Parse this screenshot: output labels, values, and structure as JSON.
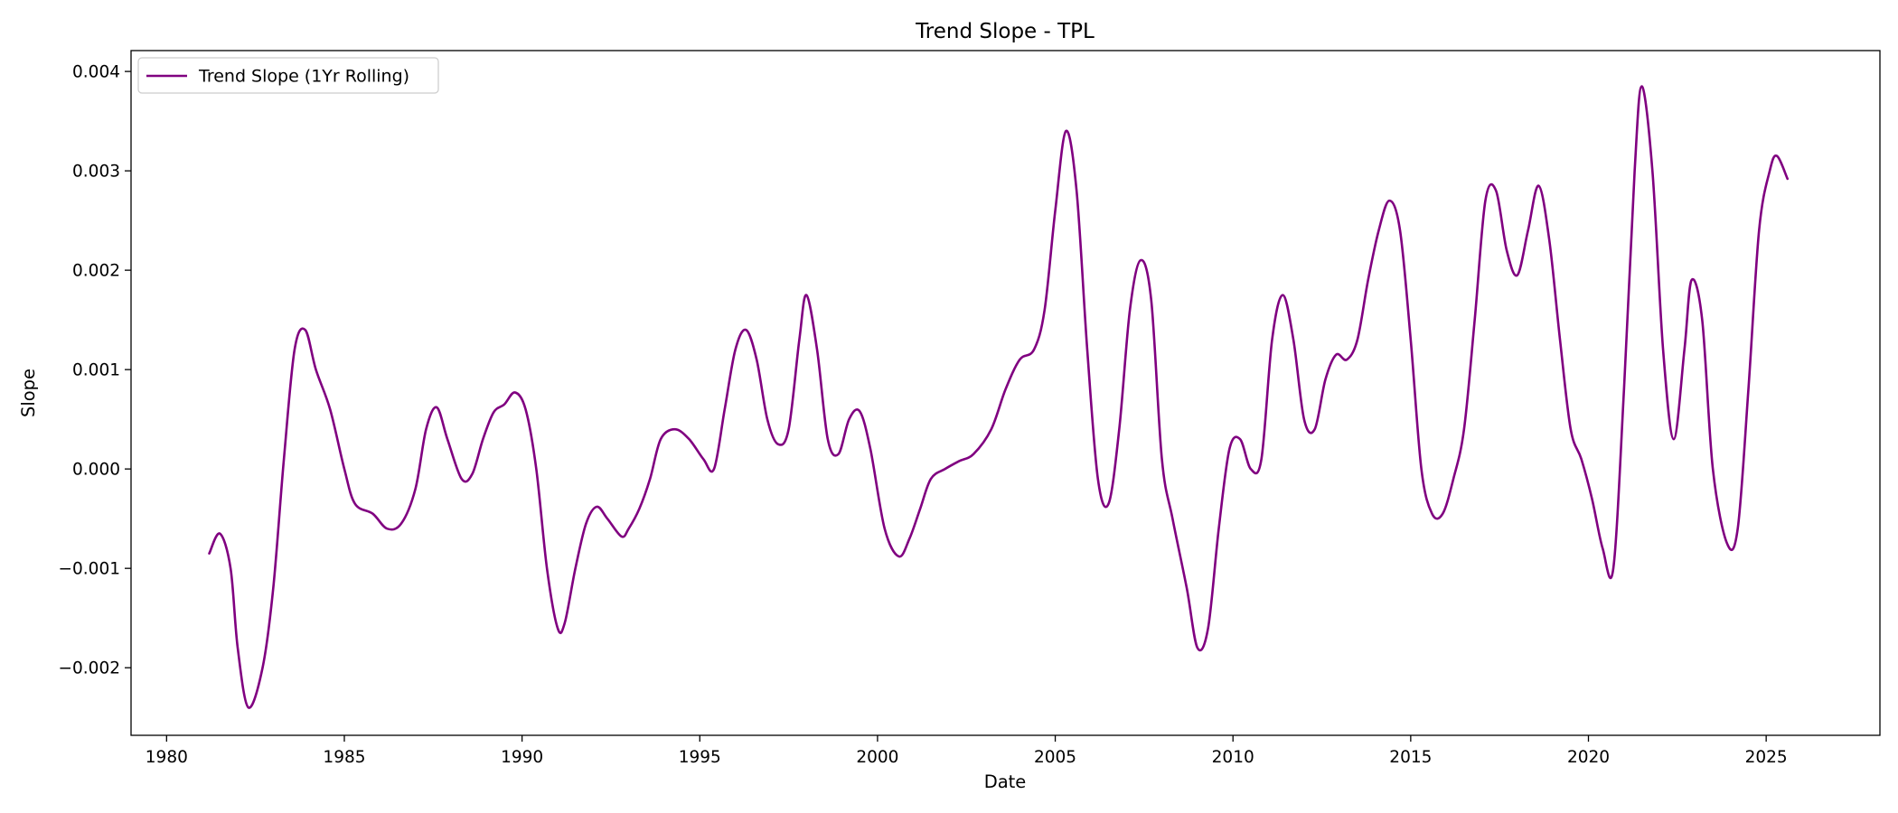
{
  "chart_data": {
    "type": "line",
    "title": "Trend Slope - TPL",
    "xlabel": "Date",
    "ylabel": "Slope",
    "xlim": [
      1979.0,
      2028.2
    ],
    "ylim": [
      -0.00268,
      0.00421
    ],
    "x_ticks": [
      1980,
      1985,
      1990,
      1995,
      2000,
      2005,
      2010,
      2015,
      2020,
      2025
    ],
    "x_tick_labels": [
      "1980",
      "1985",
      "1990",
      "1995",
      "2000",
      "2005",
      "2010",
      "2015",
      "2020",
      "2025"
    ],
    "y_ticks": [
      -0.002,
      -0.001,
      0.0,
      0.001,
      0.002,
      0.003,
      0.004
    ],
    "y_tick_labels": [
      "−0.002",
      "−0.001",
      "0.000",
      "0.001",
      "0.002",
      "0.003",
      "0.004"
    ],
    "grid": false,
    "legend_position": "upper-left",
    "series": [
      {
        "name": "Trend Slope (1Yr Rolling)",
        "color": "#800080",
        "points": [
          [
            1981.2,
            -0.00085
          ],
          [
            1981.5,
            -0.00065
          ],
          [
            1981.8,
            -0.001
          ],
          [
            1982.0,
            -0.0018
          ],
          [
            1982.3,
            -0.0024
          ],
          [
            1982.7,
            -0.002
          ],
          [
            1983.0,
            -0.0012
          ],
          [
            1983.3,
            0.0001
          ],
          [
            1983.6,
            0.0012
          ],
          [
            1983.9,
            0.0014
          ],
          [
            1984.2,
            0.001
          ],
          [
            1984.6,
            0.0006
          ],
          [
            1985.0,
            0.0
          ],
          [
            1985.3,
            -0.00035
          ],
          [
            1985.8,
            -0.00045
          ],
          [
            1986.2,
            -0.0006
          ],
          [
            1986.6,
            -0.00055
          ],
          [
            1987.0,
            -0.0002
          ],
          [
            1987.3,
            0.0004
          ],
          [
            1987.6,
            0.00062
          ],
          [
            1987.9,
            0.0003
          ],
          [
            1988.3,
            -0.0001
          ],
          [
            1988.6,
            -5e-05
          ],
          [
            1988.9,
            0.0003
          ],
          [
            1989.2,
            0.00057
          ],
          [
            1989.5,
            0.00065
          ],
          [
            1989.8,
            0.00077
          ],
          [
            1990.1,
            0.0006
          ],
          [
            1990.4,
            0.0
          ],
          [
            1990.7,
            -0.001
          ],
          [
            1991.0,
            -0.0016
          ],
          [
            1991.2,
            -0.00155
          ],
          [
            1991.5,
            -0.001
          ],
          [
            1991.8,
            -0.00055
          ],
          [
            1992.1,
            -0.00038
          ],
          [
            1992.4,
            -0.0005
          ],
          [
            1992.8,
            -0.00068
          ],
          [
            1993.0,
            -0.0006
          ],
          [
            1993.3,
            -0.0004
          ],
          [
            1993.6,
            -0.0001
          ],
          [
            1993.9,
            0.0003
          ],
          [
            1994.3,
            0.0004
          ],
          [
            1994.7,
            0.0003
          ],
          [
            1995.1,
            0.0001
          ],
          [
            1995.4,
            0.0
          ],
          [
            1995.7,
            0.0006
          ],
          [
            1996.0,
            0.0012
          ],
          [
            1996.3,
            0.0014
          ],
          [
            1996.6,
            0.0011
          ],
          [
            1996.9,
            0.0005
          ],
          [
            1997.2,
            0.00025
          ],
          [
            1997.5,
            0.0004
          ],
          [
            1997.8,
            0.0013
          ],
          [
            1998.0,
            0.00175
          ],
          [
            1998.3,
            0.0012
          ],
          [
            1998.6,
            0.0003
          ],
          [
            1998.9,
            0.00015
          ],
          [
            1999.2,
            0.0005
          ],
          [
            1999.5,
            0.00058
          ],
          [
            1999.8,
            0.0002
          ],
          [
            2000.2,
            -0.0006
          ],
          [
            2000.6,
            -0.00088
          ],
          [
            2000.9,
            -0.0007
          ],
          [
            2001.2,
            -0.0004
          ],
          [
            2001.5,
            -0.0001
          ],
          [
            2001.9,
            0.0
          ],
          [
            2002.3,
            8e-05
          ],
          [
            2002.7,
            0.00015
          ],
          [
            2003.2,
            0.0004
          ],
          [
            2003.6,
            0.0008
          ],
          [
            2004.0,
            0.0011
          ],
          [
            2004.4,
            0.0012
          ],
          [
            2004.7,
            0.0016
          ],
          [
            2005.0,
            0.0026
          ],
          [
            2005.3,
            0.0034
          ],
          [
            2005.6,
            0.0028
          ],
          [
            2005.9,
            0.0012
          ],
          [
            2006.2,
            -0.0001
          ],
          [
            2006.5,
            -0.00035
          ],
          [
            2006.8,
            0.0004
          ],
          [
            2007.1,
            0.0016
          ],
          [
            2007.4,
            0.0021
          ],
          [
            2007.7,
            0.0017
          ],
          [
            2008.0,
            0.0001
          ],
          [
            2008.3,
            -0.0005
          ],
          [
            2008.7,
            -0.0012
          ],
          [
            2009.0,
            -0.0018
          ],
          [
            2009.3,
            -0.0016
          ],
          [
            2009.6,
            -0.0006
          ],
          [
            2009.9,
            0.0002
          ],
          [
            2010.2,
            0.0003
          ],
          [
            2010.5,
            0.0
          ],
          [
            2010.8,
            0.0001
          ],
          [
            2011.1,
            0.0013
          ],
          [
            2011.4,
            0.00175
          ],
          [
            2011.7,
            0.0013
          ],
          [
            2012.0,
            0.0005
          ],
          [
            2012.3,
            0.0004
          ],
          [
            2012.6,
            0.0009
          ],
          [
            2012.9,
            0.00115
          ],
          [
            2013.2,
            0.0011
          ],
          [
            2013.5,
            0.0013
          ],
          [
            2013.8,
            0.0019
          ],
          [
            2014.1,
            0.0024
          ],
          [
            2014.4,
            0.0027
          ],
          [
            2014.7,
            0.0024
          ],
          [
            2015.0,
            0.0013
          ],
          [
            2015.3,
            0.0
          ],
          [
            2015.6,
            -0.00045
          ],
          [
            2015.9,
            -0.00045
          ],
          [
            2016.2,
            -0.0001
          ],
          [
            2016.5,
            0.0004
          ],
          [
            2016.8,
            0.0015
          ],
          [
            2017.1,
            0.0027
          ],
          [
            2017.4,
            0.0028
          ],
          [
            2017.7,
            0.0022
          ],
          [
            2018.0,
            0.00195
          ],
          [
            2018.3,
            0.0024
          ],
          [
            2018.6,
            0.00285
          ],
          [
            2018.9,
            0.0023
          ],
          [
            2019.2,
            0.0013
          ],
          [
            2019.5,
            0.0004
          ],
          [
            2019.8,
            0.0001
          ],
          [
            2020.1,
            -0.0003
          ],
          [
            2020.4,
            -0.0008
          ],
          [
            2020.7,
            -0.001
          ],
          [
            2021.0,
            0.0008
          ],
          [
            2021.3,
            0.003
          ],
          [
            2021.5,
            0.00385
          ],
          [
            2021.8,
            0.003
          ],
          [
            2022.1,
            0.0012
          ],
          [
            2022.4,
            0.0003
          ],
          [
            2022.7,
            0.0012
          ],
          [
            2022.9,
            0.0019
          ],
          [
            2023.2,
            0.0015
          ],
          [
            2023.5,
            0.0
          ],
          [
            2023.9,
            -0.00075
          ],
          [
            2024.2,
            -0.0006
          ],
          [
            2024.5,
            0.0008
          ],
          [
            2024.8,
            0.0024
          ],
          [
            2025.1,
            0.003
          ],
          [
            2025.3,
            0.00315
          ],
          [
            2025.6,
            0.00292
          ]
        ]
      }
    ]
  }
}
